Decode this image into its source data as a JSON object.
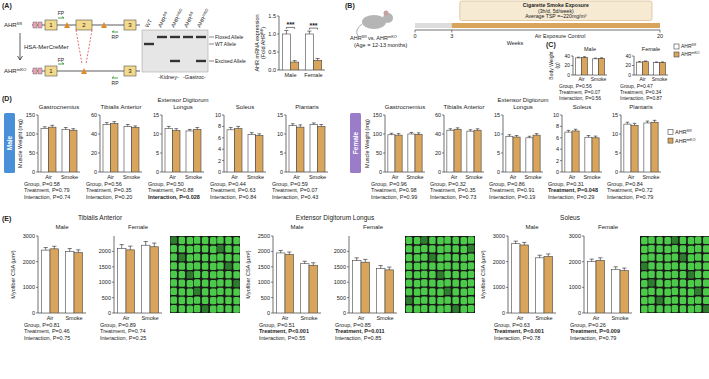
{
  "chart_data": [
    {
      "type": "bar",
      "y_label": "AHR mRNA expression (Fold AHRfl/fl)",
      "categories": [
        "Male",
        "Female"
      ],
      "series": [
        {
          "color": "#ffffff",
          "values": [
            1.0,
            1.0
          ],
          "errors": [
            0.1,
            0.08
          ]
        },
        {
          "color": "#d9a45b",
          "values": [
            0.22,
            0.27
          ],
          "errors": [
            0.04,
            0.05
          ]
        }
      ],
      "ylim": [
        0,
        1.5
      ],
      "yticks": [
        {
          "value": 0,
          "label": "0.0"
        },
        {
          "value": 0.5,
          "label": "0.5"
        },
        {
          "value": 1,
          "label": "1.0"
        },
        {
          "value": 1.5,
          "label": "1.5"
        }
      ],
      "annotations": [
        {
          "text": "***",
          "x": "Male"
        },
        {
          "text": "***",
          "x": "Female"
        }
      ]
    },
    {
      "type": "bar",
      "title": "Male",
      "y_label": "Body Weight (g)",
      "categories": [
        "Air",
        "Smoke"
      ],
      "series": [
        {
          "color": "#ffffff",
          "values": [
            36,
            34
          ],
          "errors": [
            1.5,
            1.5
          ]
        },
        {
          "color": "#d9a45b",
          "values": [
            37,
            35
          ],
          "errors": [
            1.5,
            1.2
          ]
        }
      ],
      "ylim": [
        0,
        40
      ],
      "yticks": [
        0,
        20,
        40
      ],
      "stats": [
        "Group, P=0.56",
        "Treatment, P=0.07",
        "Interaction, P=0.56"
      ]
    },
    {
      "type": "bar",
      "title": "Female",
      "categories": [
        "Air",
        "Smoke"
      ],
      "series": [
        {
          "name": "AHRfl/fl",
          "color": "#ffffff",
          "values": [
            27,
            26
          ],
          "errors": [
            1.5,
            1.5
          ]
        },
        {
          "name": "AHRmKO",
          "color": "#d9a45b",
          "values": [
            28,
            26
          ],
          "errors": [
            1.5,
            1.5
          ]
        }
      ],
      "ylim": [
        0,
        40
      ],
      "yticks": [
        0,
        20,
        40
      ],
      "legend": "right",
      "stats": [
        "Group, P=0.47",
        "Treatment, P=0.34",
        "Interaction, P=0.87"
      ]
    },
    {
      "type": "bar",
      "title": "Gastrocnemius",
      "y_label": "Muscle Weight (mg)",
      "categories": [
        "Air",
        "Smoke"
      ],
      "series": [
        {
          "color": "#ffffff",
          "values": [
            115,
            112
          ],
          "errors": [
            4,
            5
          ]
        },
        {
          "color": "#d9a45b",
          "values": [
            118,
            110
          ],
          "errors": [
            5,
            4
          ]
        }
      ],
      "ylim": [
        0,
        150
      ],
      "yticks": [
        0,
        50,
        100,
        150
      ],
      "stats": [
        "Group, P=0.58",
        "Treatment, P=0.79",
        "Interaction, P=0.74"
      ]
    },
    {
      "type": "bar",
      "title": "Tibialis Anterior",
      "categories": [
        "Air",
        "Smoke"
      ],
      "series": [
        {
          "color": "#ffffff",
          "values": [
            50,
            48
          ],
          "errors": [
            2,
            2
          ]
        },
        {
          "color": "#d9a45b",
          "values": [
            51,
            47
          ],
          "errors": [
            2,
            1.5
          ]
        }
      ],
      "ylim": [
        0,
        60
      ],
      "yticks": [
        0,
        20,
        40,
        60
      ],
      "stats": [
        "Group, P=0.56",
        "Treatment, P=0.35",
        "Interaction, P=0.20"
      ]
    },
    {
      "type": "bar",
      "title": "Extensor Digitorum Longus",
      "categories": [
        "Air",
        "Smoke"
      ],
      "series": [
        {
          "color": "#ffffff",
          "values": [
            11.5,
            10.8
          ],
          "errors": [
            0.5,
            0.4
          ]
        },
        {
          "color": "#d9a45b",
          "values": [
            10.9,
            11.2
          ],
          "errors": [
            0.5,
            0.5
          ]
        }
      ],
      "ylim": [
        0,
        15
      ],
      "yticks": [
        0,
        5,
        10,
        15
      ],
      "stats": [
        "Group, P=0.50",
        "Treatment, P=0.88",
        "Interaction, P=0.028"
      ]
    },
    {
      "type": "bar",
      "title": "Soleus",
      "categories": [
        "Air",
        "Smoke"
      ],
      "series": [
        {
          "color": "#ffffff",
          "values": [
            7.4,
            6.6
          ],
          "errors": [
            0.4,
            0.3
          ]
        },
        {
          "color": "#d9a45b",
          "values": [
            7.6,
            6.4
          ],
          "errors": [
            0.4,
            0.3
          ]
        }
      ],
      "ylim": [
        0,
        10
      ],
      "yticks": [
        0,
        2,
        4,
        6,
        8,
        10
      ],
      "stats": [
        "Group, P=0.44",
        "Treatment, P=0.63",
        "Interaction, P=0.84"
      ]
    },
    {
      "type": "bar",
      "title": "Plantaris",
      "categories": [
        "Air",
        "Smoke"
      ],
      "series": [
        {
          "color": "#ffffff",
          "values": [
            12.2,
            12.5
          ],
          "errors": [
            0.5,
            0.4
          ]
        },
        {
          "color": "#d9a45b",
          "values": [
            11.8,
            12.0
          ],
          "errors": [
            0.6,
            0.5
          ]
        }
      ],
      "ylim": [
        0,
        15
      ],
      "yticks": [
        0,
        5,
        10,
        15
      ],
      "stats": [
        "Group, P=0.59",
        "Treatment, P=0.07",
        "Interaction, P=0.43"
      ]
    },
    {
      "type": "bar",
      "title": "Gastrocnemius",
      "y_label": "Muscle Weight (mg)",
      "categories": [
        "Air",
        "Smoke"
      ],
      "series": [
        {
          "color": "#ffffff",
          "values": [
            98,
            100
          ],
          "errors": [
            4,
            4
          ]
        },
        {
          "color": "#d9a45b",
          "values": [
            97,
            99
          ],
          "errors": [
            4,
            4
          ]
        }
      ],
      "ylim": [
        0,
        150
      ],
      "yticks": [
        0,
        50,
        100,
        150
      ],
      "stats": [
        "Group, P=0.96",
        "Treatment, P=0.98",
        "Interaction, P=0.99"
      ]
    },
    {
      "type": "bar",
      "title": "Tibialis Anterior",
      "categories": [
        "Air",
        "Smoke"
      ],
      "series": [
        {
          "color": "#ffffff",
          "values": [
            44,
            43
          ],
          "errors": [
            1.5,
            1.5
          ]
        },
        {
          "color": "#d9a45b",
          "values": [
            45,
            44
          ],
          "errors": [
            1.5,
            1.5
          ]
        }
      ],
      "ylim": [
        0,
        60
      ],
      "yticks": [
        0,
        20,
        40,
        60
      ],
      "stats": [
        "Group, P=0.32",
        "Treatment, P=0.35",
        "Interaction, P=0.73"
      ]
    },
    {
      "type": "bar",
      "title": "Extensor Digitorum Longus",
      "categories": [
        "Air",
        "Smoke"
      ],
      "series": [
        {
          "color": "#ffffff",
          "values": [
            9.4,
            9.0
          ],
          "errors": [
            0.4,
            0.4
          ]
        },
        {
          "color": "#d9a45b",
          "values": [
            9.2,
            9.7
          ],
          "errors": [
            0.4,
            0.4
          ]
        }
      ],
      "ylim": [
        0,
        15
      ],
      "yticks": [
        0,
        5,
        10,
        15
      ],
      "stats": [
        "Group, P=0.86",
        "Treatment, P=0.91",
        "Interaction, P=0.19"
      ]
    },
    {
      "type": "bar",
      "title": "Soleus",
      "categories": [
        "Air",
        "Smoke"
      ],
      "series": [
        {
          "color": "#ffffff",
          "values": [
            7.0,
            6.1
          ],
          "errors": [
            0.3,
            0.3
          ]
        },
        {
          "color": "#d9a45b",
          "values": [
            7.2,
            6.0
          ],
          "errors": [
            0.3,
            0.3
          ]
        }
      ],
      "ylim": [
        0,
        10
      ],
      "yticks": [
        0,
        2,
        4,
        6,
        8,
        10
      ],
      "stats": [
        "Group, P=0.31",
        "Treatment, P=0.048",
        "Interaction, P=0.29"
      ]
    },
    {
      "type": "bar",
      "title": "Plantaris",
      "categories": [
        "Air",
        "Smoke"
      ],
      "series": [
        {
          "name": "AHRfl/fl",
          "color": "#ffffff",
          "values": [
            12.6,
            12.9
          ],
          "errors": [
            0.5,
            0.5
          ]
        },
        {
          "name": "AHRmKO",
          "color": "#d9a45b",
          "values": [
            12.3,
            13.1
          ],
          "errors": [
            0.5,
            0.5
          ]
        }
      ],
      "ylim": [
        0,
        15
      ],
      "yticks": [
        0,
        5,
        10,
        15
      ],
      "legend": "right",
      "stats": [
        "Group, P=0.84",
        "Treatment, P=0.72",
        "Interaction, P=0.79"
      ]
    },
    {
      "type": "bar",
      "title": "Male",
      "y_label": "Myofiber CSA (µm²)",
      "categories": [
        "Air",
        "Smoke"
      ],
      "series": [
        {
          "color": "#ffffff",
          "values": [
            2450,
            2400
          ],
          "errors": [
            100,
            110
          ]
        },
        {
          "color": "#d9a45b",
          "values": [
            2500,
            2350
          ],
          "errors": [
            100,
            110
          ]
        }
      ],
      "ylim": [
        0,
        3000
      ],
      "yticks": [
        0,
        1000,
        2000,
        3000
      ],
      "stats": [
        "Group, P=0.81",
        "Treatment, P=0.46",
        "Interaction, P=0.75"
      ]
    },
    {
      "type": "bar",
      "title": "Female",
      "categories": [
        "Air",
        "Smoke"
      ],
      "series": [
        {
          "color": "#ffffff",
          "values": [
            2100,
            2200
          ],
          "errors": [
            120,
            120
          ]
        },
        {
          "color": "#d9a45b",
          "values": [
            2050,
            2150
          ],
          "errors": [
            120,
            120
          ]
        }
      ],
      "ylim": [
        0,
        2500
      ],
      "yticks": [
        0,
        500,
        1000,
        1500,
        2000
      ],
      "stats": [
        "Group, P=0.89",
        "Treatment, P=0.74",
        "Interaction, P=0.25"
      ]
    },
    {
      "type": "bar",
      "title": "Male",
      "y_label": "Myofiber CSA (µm²)",
      "categories": [
        "Air",
        "Smoke"
      ],
      "series": [
        {
          "color": "#ffffff",
          "values": [
            1950,
            1600
          ],
          "errors": [
            80,
            80
          ]
        },
        {
          "color": "#d9a45b",
          "values": [
            1900,
            1550
          ],
          "errors": [
            80,
            80
          ]
        }
      ],
      "ylim": [
        0,
        2500
      ],
      "yticks": [
        0,
        500,
        1000,
        1500,
        2000,
        2500
      ],
      "stats": [
        "Group, P=0.51",
        "Treatment, P<0.001",
        "Interaction, P=0.55"
      ]
    },
    {
      "type": "bar",
      "title": "Female",
      "categories": [
        "Air",
        "Smoke"
      ],
      "series": [
        {
          "color": "#ffffff",
          "values": [
            1700,
            1450
          ],
          "errors": [
            90,
            90
          ]
        },
        {
          "color": "#d9a45b",
          "values": [
            1650,
            1400
          ],
          "errors": [
            90,
            90
          ]
        }
      ],
      "ylim": [
        0,
        2500
      ],
      "yticks": [
        0,
        500,
        1000,
        1500,
        2000
      ],
      "stats": [
        "Group, P=0.85",
        "Treatment, P=0.011",
        "Interaction, P=0.85"
      ]
    },
    {
      "type": "bar",
      "title": "Male",
      "y_label": "Myofiber CSA (µm²)",
      "categories": [
        "Air",
        "Smoke"
      ],
      "series": [
        {
          "color": "#ffffff",
          "values": [
            2700,
            2150
          ],
          "errors": [
            100,
            100
          ]
        },
        {
          "color": "#d9a45b",
          "values": [
            2650,
            2200
          ],
          "errors": [
            100,
            100
          ]
        }
      ],
      "ylim": [
        0,
        3000
      ],
      "yticks": [
        0,
        1000,
        2000,
        3000
      ],
      "stats": [
        "Group, P=0.63",
        "Treatment, P<0.001",
        "Interaction, P=0.78"
      ]
    },
    {
      "type": "bar",
      "title": "Female",
      "categories": [
        "Air",
        "Smoke"
      ],
      "series": [
        {
          "color": "#ffffff",
          "values": [
            2000,
            1700
          ],
          "errors": [
            100,
            100
          ]
        },
        {
          "color": "#d9a45b",
          "values": [
            2050,
            1650
          ],
          "errors": [
            100,
            100
          ]
        }
      ],
      "ylim": [
        0,
        3000
      ],
      "yticks": [
        0,
        1000,
        2000,
        3000
      ],
      "stats": [
        "Group, P=0.26",
        "Treatment, P=0.009",
        "Interaction, P=0.79"
      ]
    }
  ],
  "figure": {
    "panel_labels": [
      "(A)",
      "(B)",
      "(C)",
      "(D)",
      "(E)"
    ],
    "a": {
      "alleles": [
        "AHRfl/fl",
        "AHRmKO"
      ],
      "cre": "HSA-MerCreMer",
      "exons": [
        "1",
        "2",
        "3"
      ],
      "primers": [
        "FP",
        "RP"
      ],
      "lanes": [
        "WT",
        "AHRfl/fl",
        "AHRmKO",
        "AHRfl/fl",
        "AHRmKO"
      ],
      "tissues": [
        "-Kidney-",
        "-Gastroc-"
      ],
      "bands": [
        "Floxed Allele",
        "WT Allele",
        "Excised Allele"
      ]
    },
    "b": {
      "cohort": "AHRfl/fl vs. AHRmKO",
      "age": "(Age = 12-13 months)",
      "smoke": [
        "Cigarette Smoke Exposure",
        "(3h/d, 5d/week)",
        "Average TSP =~220mg/m³"
      ],
      "control": "Air Exposure Control",
      "timeline": {
        "label": "Weeks",
        "xlim": [
          0,
          20
        ],
        "xticks": [
          0,
          3,
          20
        ],
        "smoke_start": 3,
        "smoke_end": 20
      }
    },
    "d_sexes": [
      "Male",
      "Female"
    ],
    "e_groups": [
      "Tibialis Anterior",
      "Extensor Digitorum Longus",
      "Soleus"
    ]
  }
}
